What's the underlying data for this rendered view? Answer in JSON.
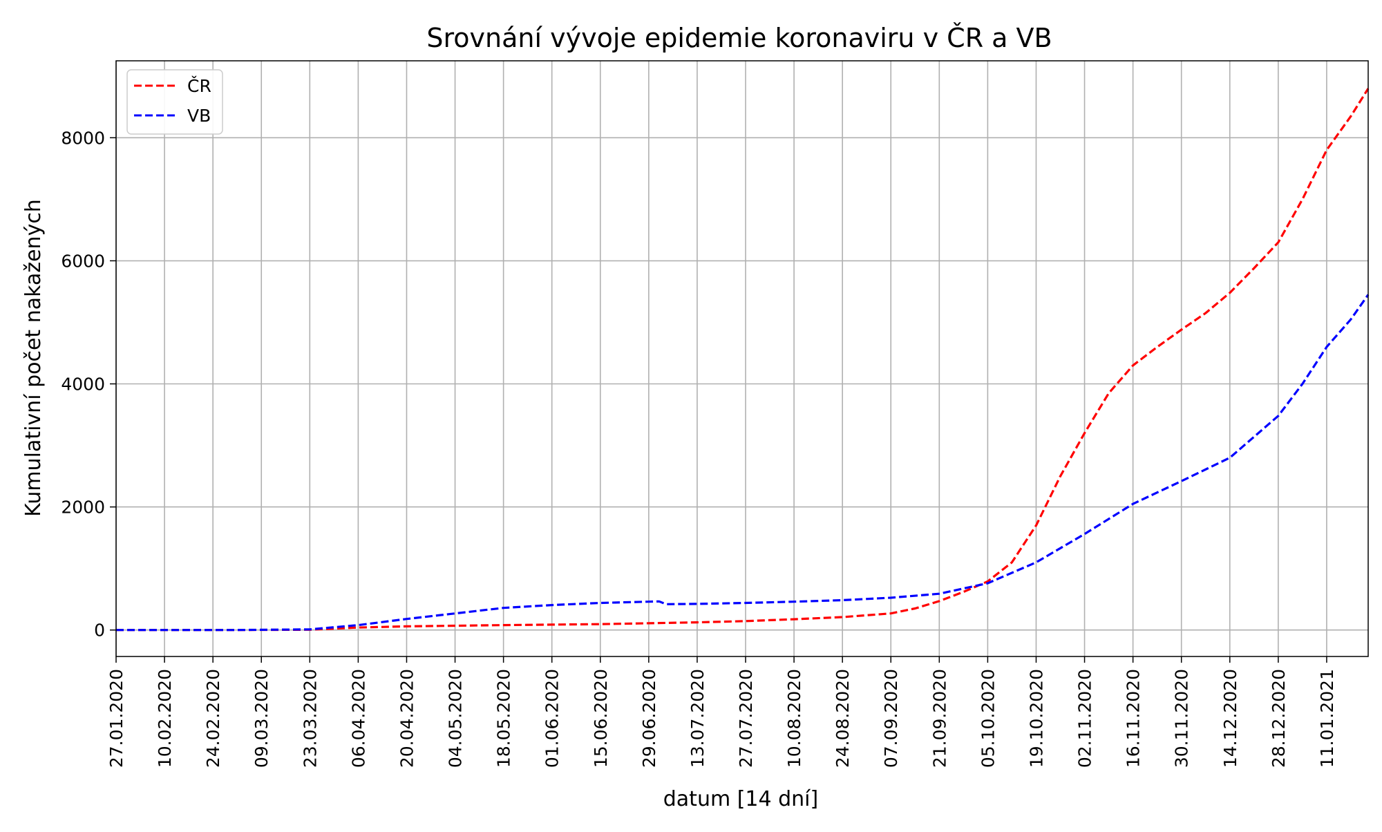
{
  "chart_data": {
    "type": "line",
    "title": "Srovnání vývoje epidemie koronaviru v ČR a VB",
    "xlabel": "datum [14 dní]",
    "ylabel": "Kumulativní počet nakažených",
    "x_start": "2020-01-27",
    "x_end": "2021-01-23",
    "ylim": [
      -430,
      9250
    ],
    "grid": true,
    "legend_position": "top-left",
    "x_ticks": [
      "27.01.2020",
      "10.02.2020",
      "24.02.2020",
      "09.03.2020",
      "23.03.2020",
      "06.04.2020",
      "20.04.2020",
      "04.05.2020",
      "18.05.2020",
      "01.06.2020",
      "15.06.2020",
      "29.06.2020",
      "13.07.2020",
      "27.07.2020",
      "10.08.2020",
      "24.08.2020",
      "07.09.2020",
      "21.09.2020",
      "05.10.2020",
      "19.10.2020",
      "02.11.2020",
      "16.11.2020",
      "30.11.2020",
      "14.12.2020",
      "28.12.2020",
      "11.01.2021"
    ],
    "y_ticks": [
      0,
      2000,
      4000,
      6000,
      8000
    ],
    "series": [
      {
        "name": "ČR",
        "color": "#ff0000",
        "line_style": "dashed",
        "points": [
          [
            "2020-01-27",
            0
          ],
          [
            "2020-03-01",
            0
          ],
          [
            "2020-03-23",
            5
          ],
          [
            "2020-04-06",
            40
          ],
          [
            "2020-04-20",
            60
          ],
          [
            "2020-05-04",
            70
          ],
          [
            "2020-05-18",
            80
          ],
          [
            "2020-06-01",
            88
          ],
          [
            "2020-06-15",
            95
          ],
          [
            "2020-06-29",
            110
          ],
          [
            "2020-07-13",
            125
          ],
          [
            "2020-07-27",
            145
          ],
          [
            "2020-08-10",
            175
          ],
          [
            "2020-08-24",
            210
          ],
          [
            "2020-09-07",
            270
          ],
          [
            "2020-09-14",
            350
          ],
          [
            "2020-09-21",
            470
          ],
          [
            "2020-09-28",
            620
          ],
          [
            "2020-10-05",
            790
          ],
          [
            "2020-10-12",
            1100
          ],
          [
            "2020-10-19",
            1700
          ],
          [
            "2020-10-26",
            2500
          ],
          [
            "2020-11-02",
            3200
          ],
          [
            "2020-11-09",
            3850
          ],
          [
            "2020-11-16",
            4300
          ],
          [
            "2020-11-23",
            4600
          ],
          [
            "2020-11-30",
            4880
          ],
          [
            "2020-12-07",
            5150
          ],
          [
            "2020-12-14",
            5480
          ],
          [
            "2020-12-21",
            5880
          ],
          [
            "2020-12-28",
            6300
          ],
          [
            "2021-01-04",
            7000
          ],
          [
            "2021-01-11",
            7800
          ],
          [
            "2021-01-18",
            8350
          ],
          [
            "2021-01-23",
            8800
          ]
        ]
      },
      {
        "name": "VB",
        "color": "#0000ff",
        "line_style": "dashed",
        "points": [
          [
            "2020-01-27",
            0
          ],
          [
            "2020-03-01",
            0
          ],
          [
            "2020-03-23",
            10
          ],
          [
            "2020-04-06",
            80
          ],
          [
            "2020-04-20",
            180
          ],
          [
            "2020-05-04",
            270
          ],
          [
            "2020-05-18",
            360
          ],
          [
            "2020-06-01",
            405
          ],
          [
            "2020-06-15",
            440
          ],
          [
            "2020-06-29",
            460
          ],
          [
            "2020-07-02",
            465
          ],
          [
            "2020-07-04",
            420
          ],
          [
            "2020-07-13",
            425
          ],
          [
            "2020-07-27",
            440
          ],
          [
            "2020-08-10",
            460
          ],
          [
            "2020-08-24",
            485
          ],
          [
            "2020-09-07",
            525
          ],
          [
            "2020-09-21",
            590
          ],
          [
            "2020-10-05",
            760
          ],
          [
            "2020-10-19",
            1100
          ],
          [
            "2020-11-02",
            1560
          ],
          [
            "2020-11-16",
            2050
          ],
          [
            "2020-11-30",
            2420
          ],
          [
            "2020-12-14",
            2800
          ],
          [
            "2020-12-28",
            3480
          ],
          [
            "2021-01-04",
            4000
          ],
          [
            "2021-01-11",
            4600
          ],
          [
            "2021-01-18",
            5050
          ],
          [
            "2021-01-23",
            5450
          ]
        ]
      }
    ]
  }
}
